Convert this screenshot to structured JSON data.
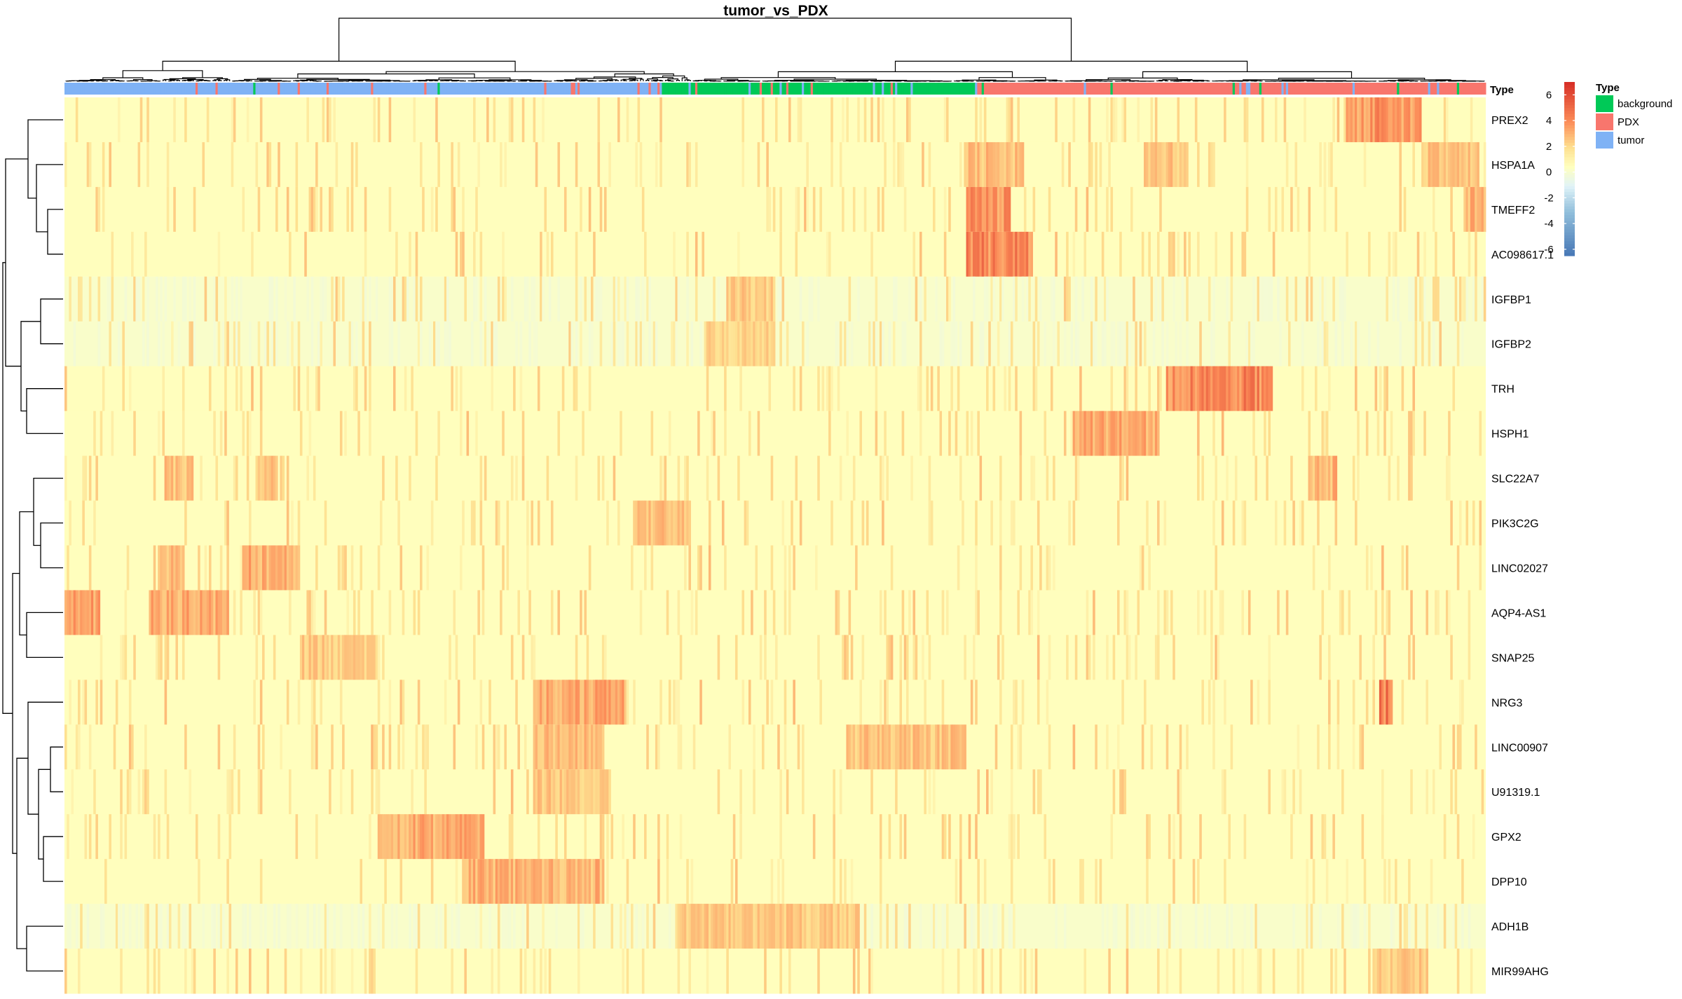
{
  "chart_data": {
    "type": "heatmap",
    "title": "tumor_vs_PDX",
    "annotation_title": "Type",
    "genes": [
      "PREX2",
      "HSPA1A",
      "TMEFF2",
      "AC098617.1",
      "IGFBP1",
      "IGFBP2",
      "TRH",
      "HSPH1",
      "SLC22A7",
      "PIK3C2G",
      "LINC02027",
      "AQP4-AS1",
      "SNAP25",
      "NRG3",
      "LINC00907",
      "U91319.1",
      "GPX2",
      "DPP10",
      "ADH1B",
      "MIR99AHG"
    ],
    "sample_groups": [
      {
        "type": "tumor",
        "fraction": 0.42
      },
      {
        "type": "background",
        "fraction": 0.22
      },
      {
        "type": "PDX",
        "fraction": 0.36
      }
    ],
    "types": [
      {
        "name": "background",
        "color": "#00C957"
      },
      {
        "name": "PDX",
        "color": "#F8766D"
      },
      {
        "name": "tumor",
        "color": "#7FB2F5"
      }
    ],
    "color_scale": {
      "ticks": [
        "6",
        "4",
        "2",
        "0",
        "-2",
        "-4",
        "-6"
      ],
      "min": -6.5,
      "max": 7,
      "stops": [
        {
          "value": -6.5,
          "color": "#4575B4"
        },
        {
          "value": -3,
          "color": "#91BFDB"
        },
        {
          "value": -1,
          "color": "#E0F3F8"
        },
        {
          "value": 0.5,
          "color": "#FFFFBF"
        },
        {
          "value": 2,
          "color": "#FEE090"
        },
        {
          "value": 4,
          "color": "#FC8D59"
        },
        {
          "value": 7,
          "color": "#D73027"
        }
      ]
    },
    "hotspots": [
      {
        "gene": "PREX2",
        "from": 0.901,
        "to": 0.954,
        "level": 4.5
      },
      {
        "gene": "HSPA1A",
        "from": 0.635,
        "to": 0.675,
        "level": 3.2
      },
      {
        "gene": "HSPA1A",
        "from": 0.76,
        "to": 0.79,
        "level": 3.0
      },
      {
        "gene": "HSPA1A",
        "from": 0.955,
        "to": 0.995,
        "level": 3.0
      },
      {
        "gene": "TMEFF2",
        "from": 0.635,
        "to": 0.665,
        "level": 4.5
      },
      {
        "gene": "TMEFF2",
        "from": 0.985,
        "to": 1.0,
        "level": 3.5
      },
      {
        "gene": "AC098617.1",
        "from": 0.635,
        "to": 0.682,
        "level": 5.0
      },
      {
        "gene": "IGFBP1",
        "from": 0.465,
        "to": 0.5,
        "level": 2.8
      },
      {
        "gene": "IGFBP2",
        "from": 0.45,
        "to": 0.5,
        "level": 2.5
      },
      {
        "gene": "TRH",
        "from": 0.775,
        "to": 0.85,
        "level": 5.0
      },
      {
        "gene": "HSPH1",
        "from": 0.71,
        "to": 0.77,
        "level": 3.8
      },
      {
        "gene": "SLC22A7",
        "from": 0.875,
        "to": 0.895,
        "level": 3.5
      },
      {
        "gene": "SLC22A7",
        "from": 0.07,
        "to": 0.09,
        "level": 3.0
      },
      {
        "gene": "SLC22A7",
        "from": 0.135,
        "to": 0.15,
        "level": 3.0
      },
      {
        "gene": "PIK3C2G",
        "from": 0.4,
        "to": 0.44,
        "level": 3.2
      },
      {
        "gene": "LINC02027",
        "from": 0.125,
        "to": 0.165,
        "level": 3.8
      },
      {
        "gene": "LINC02027",
        "from": 0.065,
        "to": 0.085,
        "level": 3.2
      },
      {
        "gene": "AQP4-AS1",
        "from": 0.0,
        "to": 0.025,
        "level": 4.0
      },
      {
        "gene": "AQP4-AS1",
        "from": 0.06,
        "to": 0.115,
        "level": 3.8
      },
      {
        "gene": "SNAP25",
        "from": 0.165,
        "to": 0.22,
        "level": 2.8
      },
      {
        "gene": "NRG3",
        "from": 0.33,
        "to": 0.395,
        "level": 3.8
      },
      {
        "gene": "NRG3",
        "from": 0.925,
        "to": 0.935,
        "level": 5.5
      },
      {
        "gene": "LINC00907",
        "from": 0.55,
        "to": 0.635,
        "level": 3.0
      },
      {
        "gene": "LINC00907",
        "from": 0.33,
        "to": 0.38,
        "level": 3.2
      },
      {
        "gene": "U91319.1",
        "from": 0.33,
        "to": 0.385,
        "level": 3.0
      },
      {
        "gene": "GPX2",
        "from": 0.22,
        "to": 0.295,
        "level": 3.8
      },
      {
        "gene": "DPP10",
        "from": 0.28,
        "to": 0.38,
        "level": 3.5
      },
      {
        "gene": "ADH1B",
        "from": 0.43,
        "to": 0.56,
        "level": 2.8
      },
      {
        "gene": "MIR99AHG",
        "from": 0.92,
        "to": 0.96,
        "level": 2.8
      }
    ]
  }
}
